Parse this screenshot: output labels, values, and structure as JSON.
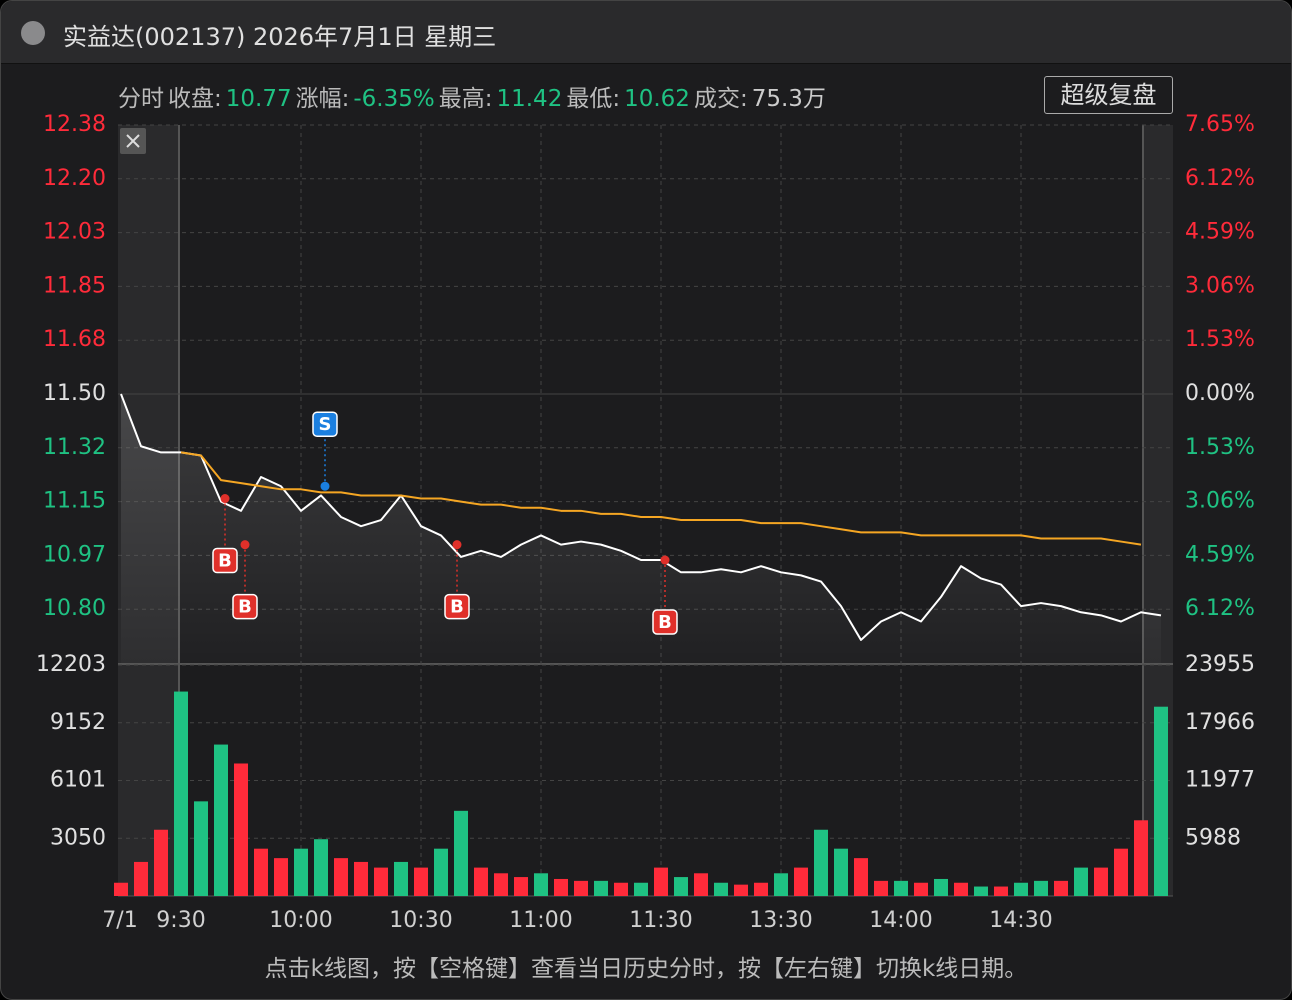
{
  "window": {
    "title": "实益达(002137) 2026年7月1日 星期三"
  },
  "info": {
    "mode": "分时",
    "items": [
      {
        "label": "收盘:",
        "value": "10.77",
        "color": "#1fc283"
      },
      {
        "label": "涨幅:",
        "value": "-6.35%",
        "color": "#1fc283"
      },
      {
        "label": "最高:",
        "value": "11.42",
        "color": "#1fc283"
      },
      {
        "label": "最低:",
        "value": "10.62",
        "color": "#1fc283"
      },
      {
        "label": "成交:",
        "value": "75.3万",
        "color": "#cccccc"
      }
    ]
  },
  "button": "超级复盘",
  "footer": "点击k线图，按【空格键】查看当日历史分时，按【左右键】切换k线日期。",
  "chart_data": [
    {
      "type": "line",
      "categories": [
        "7/1",
        null,
        null,
        "9:30",
        null,
        null,
        null,
        null,
        null,
        "10:00",
        null,
        null,
        null,
        null,
        null,
        "10:30",
        null,
        null,
        null,
        null,
        null,
        "11:00",
        null,
        null,
        null,
        null,
        null,
        "11:30",
        null,
        null,
        null,
        null,
        null,
        "13:30",
        null,
        null,
        null,
        null,
        null,
        "14:00",
        null,
        null,
        null,
        null,
        null,
        "14:30",
        null,
        null,
        null,
        null,
        null,
        null,
        null
      ],
      "series": [
        {
          "color": "#ffffff",
          "values": [
            11.5,
            11.33,
            11.31,
            11.31,
            11.3,
            11.15,
            11.12,
            11.23,
            11.2,
            11.12,
            11.17,
            11.1,
            11.07,
            11.09,
            11.17,
            11.07,
            11.04,
            10.97,
            10.99,
            10.97,
            11.01,
            11.04,
            11.01,
            11.02,
            11.01,
            10.99,
            10.96,
            10.96,
            10.92,
            10.92,
            10.93,
            10.92,
            10.94,
            10.92,
            10.91,
            10.89,
            10.81,
            10.7,
            10.76,
            10.79,
            10.76,
            10.84,
            10.94,
            10.9,
            10.88,
            10.81,
            10.82,
            10.81,
            10.79,
            10.78,
            10.76,
            10.79,
            10.78
          ]
        },
        {
          "color": "#f5a623",
          "values": [
            null,
            null,
            null,
            11.31,
            11.3,
            11.22,
            11.21,
            11.2,
            11.19,
            11.19,
            11.18,
            11.18,
            11.17,
            11.17,
            11.17,
            11.16,
            11.16,
            11.15,
            11.14,
            11.14,
            11.13,
            11.13,
            11.12,
            11.12,
            11.11,
            11.11,
            11.1,
            11.1,
            11.09,
            11.09,
            11.09,
            11.09,
            11.08,
            11.08,
            11.08,
            11.07,
            11.06,
            11.05,
            11.05,
            11.05,
            11.04,
            11.04,
            11.04,
            11.04,
            11.04,
            11.04,
            11.03,
            11.03,
            11.03,
            11.03,
            11.02,
            11.01,
            null
          ]
        }
      ],
      "ylim": [
        10.625,
        12.375
      ],
      "yticks": [
        {
          "value": 12.375,
          "label": "12.38"
        },
        {
          "value": 12.2,
          "label": "12.20"
        },
        {
          "value": 12.025,
          "label": "12.03"
        },
        {
          "value": 11.85,
          "label": "11.85"
        },
        {
          "value": 11.675,
          "label": "11.68"
        },
        {
          "value": 11.5,
          "label": "11.50"
        },
        {
          "value": 11.325,
          "label": "11.32"
        },
        {
          "value": 11.15,
          "label": "11.15"
        },
        {
          "value": 10.975,
          "label": "10.97"
        },
        {
          "value": 10.8,
          "label": "10.80"
        }
      ],
      "y2lim": [
        -7.65,
        7.65
      ],
      "y2ticks": [
        {
          "value": 7.65,
          "label": "7.65%"
        },
        {
          "value": 6.12,
          "label": "6.12%"
        },
        {
          "value": 4.59,
          "label": "4.59%"
        },
        {
          "value": 3.06,
          "label": "3.06%"
        },
        {
          "value": 1.53,
          "label": "1.53%"
        },
        {
          "value": 0,
          "label": "0.00%"
        },
        {
          "value": -1.53,
          "label": "1.53%"
        },
        {
          "value": -3.06,
          "label": "3.06%"
        },
        {
          "value": -4.59,
          "label": "4.59%"
        },
        {
          "value": -6.12,
          "label": "6.12%"
        }
      ],
      "up_color": "#ff2b3a",
      "down_color": "#1fc283",
      "flat_color": "#e0e0e0",
      "grid": true,
      "signals": [
        {
          "text": "B",
          "time": "9:41",
          "price": 11.16,
          "color": "#e0302a",
          "side": "below"
        },
        {
          "text": "B",
          "time": "9:46",
          "price": 11.01,
          "color": "#e0302a",
          "side": "below"
        },
        {
          "text": "S",
          "time": "10:06",
          "price": 11.2,
          "color": "#1a7fe0",
          "side": "above"
        },
        {
          "text": "B",
          "time": "10:39",
          "price": 11.01,
          "color": "#e0302a",
          "side": "below"
        },
        {
          "text": "B",
          "time": "13:01",
          "price": 10.96,
          "color": "#e0302a",
          "side": "below"
        }
      ]
    },
    {
      "type": "bar",
      "values": [
        700,
        1800,
        3500,
        10800,
        5000,
        8000,
        7000,
        2500,
        2000,
        2500,
        3000,
        2000,
        1800,
        1500,
        1800,
        1500,
        2500,
        4500,
        1500,
        1200,
        1000,
        1200,
        900,
        800,
        800,
        700,
        700,
        1500,
        1000,
        1200,
        700,
        600,
        700,
        1200,
        1500,
        3500,
        2500,
        2000,
        800,
        800,
        700,
        900,
        700,
        500,
        500,
        700,
        800,
        800,
        1500,
        1500,
        2500,
        4000,
        10000
      ],
      "colors": [
        "#ff2b3a",
        "#ff2b3a",
        "#ff2b3a",
        "#1fc283",
        "#1fc283",
        "#1fc283",
        "#ff2b3a",
        "#ff2b3a",
        "#ff2b3a",
        "#1fc283",
        "#1fc283",
        "#ff2b3a",
        "#ff2b3a",
        "#ff2b3a",
        "#1fc283",
        "#ff2b3a",
        "#1fc283",
        "#1fc283",
        "#ff2b3a",
        "#ff2b3a",
        "#ff2b3a",
        "#1fc283",
        "#ff2b3a",
        "#ff2b3a",
        "#1fc283",
        "#ff2b3a",
        "#1fc283",
        "#ff2b3a",
        "#1fc283",
        "#ff2b3a",
        "#1fc283",
        "#ff2b3a",
        "#ff2b3a",
        "#1fc283",
        "#ff2b3a",
        "#1fc283",
        "#1fc283",
        "#ff2b3a",
        "#ff2b3a",
        "#1fc283",
        "#ff2b3a",
        "#1fc283",
        "#ff2b3a",
        "#1fc283",
        "#ff2b3a",
        "#1fc283",
        "#1fc283",
        "#ff2b3a",
        "#1fc283",
        "#ff2b3a",
        "#ff2b3a",
        "#ff2b3a",
        "#1fc283"
      ],
      "ylim": [
        0,
        12203
      ],
      "yticks": [
        12203,
        9152,
        6101,
        3050
      ],
      "y2lim": [
        0,
        23955
      ],
      "y2ticks": [
        23955,
        17966,
        11977,
        5988
      ]
    }
  ]
}
